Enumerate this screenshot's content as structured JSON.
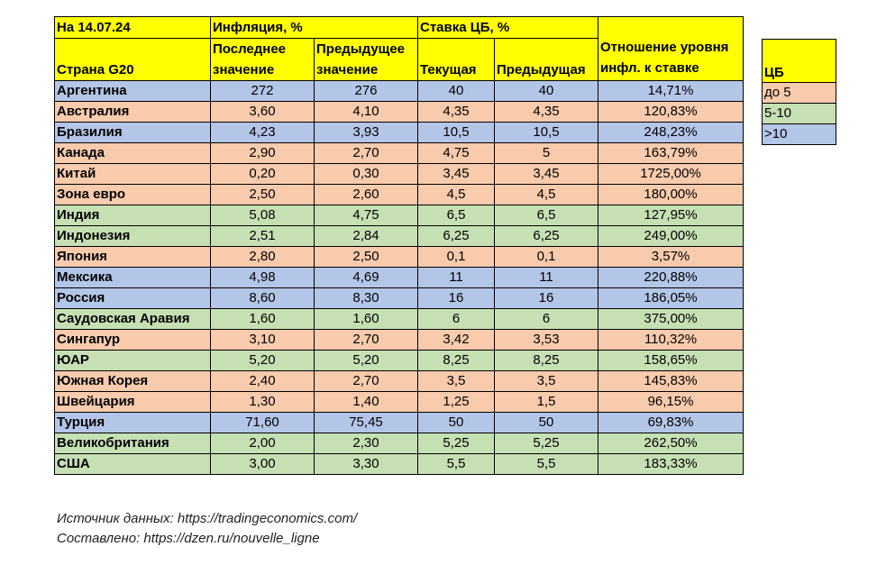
{
  "table": {
    "header": {
      "date": "На 14.07.24",
      "inflation_group": "Инфляция, %",
      "rate_group": "Ставка ЦБ, %",
      "country": "Страна G20",
      "last_value_l1": "Последнее",
      "last_value_l2": "значение",
      "prev_value_l1": "Предыдущее",
      "prev_value_l2": "значение",
      "current": "Текущая",
      "previous": "Предыдущая",
      "ratio_l1": "Отношение уровня",
      "ratio_l2": "инфл. к ставке"
    },
    "rows": [
      {
        "country": "Аргентина",
        "last": "272",
        "prev": "276",
        "cur": "40",
        "cprev": "40",
        "ratio": "14,71%",
        "group": "high"
      },
      {
        "country": "Австралия",
        "last": "3,60",
        "prev": "4,10",
        "cur": "4,35",
        "cprev": "4,35",
        "ratio": "120,83%",
        "group": "low"
      },
      {
        "country": "Бразилия",
        "last": "4,23",
        "prev": "3,93",
        "cur": "10,5",
        "cprev": "10,5",
        "ratio": "248,23%",
        "group": "high"
      },
      {
        "country": "Канада",
        "last": "2,90",
        "prev": "2,70",
        "cur": "4,75",
        "cprev": "5",
        "ratio": "163,79%",
        "group": "low"
      },
      {
        "country": "Китай",
        "last": "0,20",
        "prev": "0,30",
        "cur": "3,45",
        "cprev": "3,45",
        "ratio": "1725,00%",
        "group": "low"
      },
      {
        "country": "Зона евро",
        "last": "2,50",
        "prev": "2,60",
        "cur": "4,5",
        "cprev": "4,5",
        "ratio": "180,00%",
        "group": "low"
      },
      {
        "country": "Индия",
        "last": "5,08",
        "prev": "4,75",
        "cur": "6,5",
        "cprev": "6,5",
        "ratio": "127,95%",
        "group": "mid"
      },
      {
        "country": "Индонезия",
        "last": "2,51",
        "prev": "2,84",
        "cur": "6,25",
        "cprev": "6,25",
        "ratio": "249,00%",
        "group": "mid"
      },
      {
        "country": "Япония",
        "last": "2,80",
        "prev": "2,50",
        "cur": "0,1",
        "cprev": "0,1",
        "ratio": "3,57%",
        "group": "low"
      },
      {
        "country": "Мексика",
        "last": "4,98",
        "prev": "4,69",
        "cur": "11",
        "cprev": "11",
        "ratio": "220,88%",
        "group": "high"
      },
      {
        "country": "Россия",
        "last": "8,60",
        "prev": "8,30",
        "cur": "16",
        "cprev": "16",
        "ratio": "186,05%",
        "group": "high"
      },
      {
        "country": "Саудовская Аравия",
        "last": "1,60",
        "prev": "1,60",
        "cur": "6",
        "cprev": "6",
        "ratio": "375,00%",
        "group": "mid"
      },
      {
        "country": "Сингапур",
        "last": "3,10",
        "prev": "2,70",
        "cur": "3,42",
        "cprev": "3,53",
        "ratio": "110,32%",
        "group": "low"
      },
      {
        "country": "ЮАР",
        "last": "5,20",
        "prev": "5,20",
        "cur": "8,25",
        "cprev": "8,25",
        "ratio": "158,65%",
        "group": "mid"
      },
      {
        "country": "Южная Корея",
        "last": "2,40",
        "prev": "2,70",
        "cur": "3,5",
        "cprev": "3,5",
        "ratio": "145,83%",
        "group": "low"
      },
      {
        "country": "Швейцария",
        "last": "1,30",
        "prev": "1,40",
        "cur": "1,25",
        "cprev": "1,5",
        "ratio": "96,15%",
        "group": "low"
      },
      {
        "country": "Турция",
        "last": "71,60",
        "prev": "75,45",
        "cur": "50",
        "cprev": "50",
        "ratio": "69,83%",
        "group": "high"
      },
      {
        "country": "Великобритания",
        "last": "2,00",
        "prev": "2,30",
        "cur": "5,25",
        "cprev": "5,25",
        "ratio": "262,50%",
        "group": "mid"
      },
      {
        "country": "США",
        "last": "3,00",
        "prev": "3,30",
        "cur": "5,5",
        "cprev": "5,5",
        "ratio": "183,33%",
        "group": "mid"
      }
    ]
  },
  "legend": {
    "title": "ЦБ",
    "items": [
      {
        "label": "до 5",
        "group": "low"
      },
      {
        "label": "5-10",
        "group": "mid"
      },
      {
        "label": ">10",
        "group": "high"
      }
    ]
  },
  "colors": {
    "header": "#ffff00",
    "low": "#f8cbad",
    "mid": "#c6e0b4",
    "high": "#b4c6e7"
  },
  "footer": {
    "source": "Источник данных: https://tradingeconomics.com/",
    "compiled": "Составлено: https://dzen.ru/nouvelle_ligne"
  }
}
